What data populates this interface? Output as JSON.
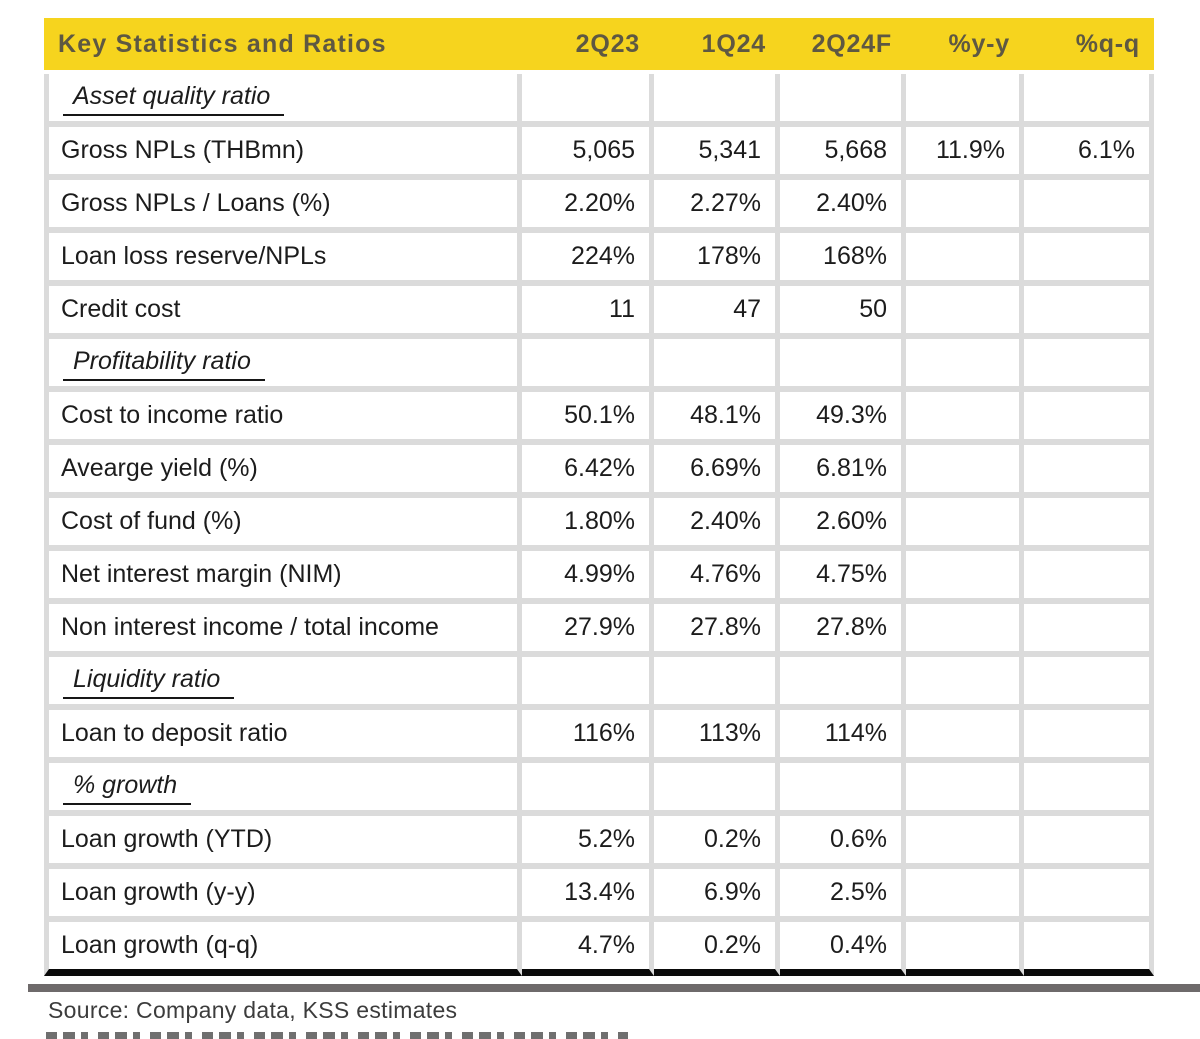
{
  "footer": {
    "source": "Source: Company data, KSS estimates"
  },
  "colors": {
    "header_bg": "#f6d41e",
    "header_text": "#5e5842",
    "grid": "#dbdbdb",
    "body_text": "#1c1c1c",
    "table_bottom": "#0a0a0a",
    "bottom_bar": "#6e6a6b",
    "source_text": "#3c3c3c"
  },
  "chart_data": {
    "type": "table",
    "title": "Key Statistics and Ratios",
    "columns": [
      "Key Statistics and Ratios",
      "2Q23",
      "1Q24",
      "2Q24F",
      "%y-y",
      "%q-q"
    ],
    "rows": [
      {
        "type": "section",
        "label": "Asset quality ratio",
        "values": [
          "",
          "",
          "",
          "",
          ""
        ]
      },
      {
        "type": "data",
        "label": "Gross NPLs (THBmn)",
        "values": [
          "5,065",
          "5,341",
          "5,668",
          "11.9%",
          "6.1%"
        ]
      },
      {
        "type": "data",
        "label": "Gross NPLs / Loans (%)",
        "values": [
          "2.20%",
          "2.27%",
          "2.40%",
          "",
          ""
        ]
      },
      {
        "type": "data",
        "label": "Loan loss reserve/NPLs",
        "values": [
          "224%",
          "178%",
          "168%",
          "",
          ""
        ]
      },
      {
        "type": "data",
        "label": "Credit cost",
        "values": [
          "11",
          "47",
          "50",
          "",
          ""
        ]
      },
      {
        "type": "section",
        "label": "Profitability ratio",
        "values": [
          "",
          "",
          "",
          "",
          ""
        ]
      },
      {
        "type": "data",
        "label": "Cost to income ratio",
        "values": [
          "50.1%",
          "48.1%",
          "49.3%",
          "",
          ""
        ]
      },
      {
        "type": "data",
        "label": "Avearge yield (%)",
        "values": [
          "6.42%",
          "6.69%",
          "6.81%",
          "",
          ""
        ]
      },
      {
        "type": "data",
        "label": "Cost of fund (%)",
        "values": [
          "1.80%",
          "2.40%",
          "2.60%",
          "",
          ""
        ]
      },
      {
        "type": "data",
        "label": "Net interest margin (NIM)",
        "values": [
          "4.99%",
          "4.76%",
          "4.75%",
          "",
          ""
        ]
      },
      {
        "type": "data",
        "label": "Non interest income / total income",
        "values": [
          "27.9%",
          "27.8%",
          "27.8%",
          "",
          ""
        ]
      },
      {
        "type": "section",
        "label": "Liquidity ratio",
        "values": [
          "",
          "",
          "",
          "",
          ""
        ]
      },
      {
        "type": "data",
        "label": "Loan to deposit ratio",
        "values": [
          "116%",
          "113%",
          "114%",
          "",
          ""
        ]
      },
      {
        "type": "section",
        "label": "% growth",
        "values": [
          "",
          "",
          "",
          "",
          ""
        ]
      },
      {
        "type": "data",
        "label": "Loan growth (YTD)",
        "values": [
          "5.2%",
          "0.2%",
          "0.6%",
          "",
          ""
        ]
      },
      {
        "type": "data",
        "label": "Loan growth (y-y)",
        "values": [
          "13.4%",
          "6.9%",
          "2.5%",
          "",
          ""
        ]
      },
      {
        "type": "data",
        "label": "Loan growth (q-q)",
        "values": [
          "4.7%",
          "0.2%",
          "0.4%",
          "",
          ""
        ]
      }
    ]
  }
}
